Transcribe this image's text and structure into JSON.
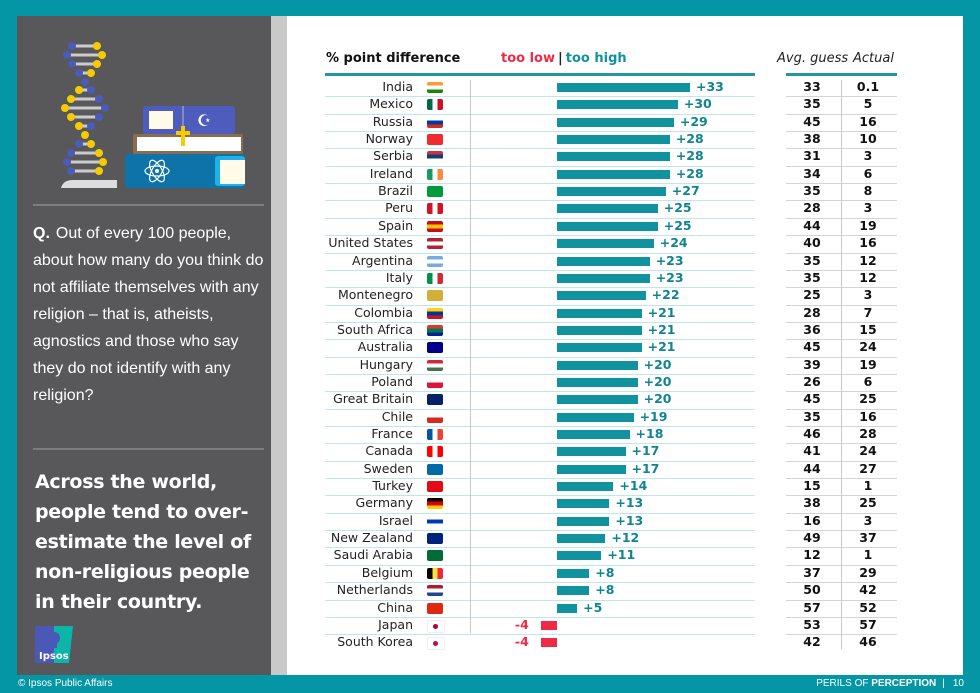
{
  "sidebar": {
    "question_prefix": "Q.",
    "question": "Out of every 100 people, about how many do you think do not affiliate themselves with any religion – that is, atheists, agnostics and those who say they do not identify with any religion?",
    "takeaway": "Across the world, people tend to over-estimate the level of non-religious people in their country.",
    "logo_text": "Ipsos"
  },
  "footer": {
    "copyright": "© Ipsos Public Affairs",
    "series_prefix": "PERILS OF",
    "series_bold": "PERCEPTION",
    "separator": "|",
    "page_number": "10"
  },
  "colors": {
    "too_low": "#ee2b45",
    "too_high": "#10939f",
    "frame": "#0596a6",
    "panel": "#58575a"
  },
  "chart_data": {
    "type": "bar",
    "orientation": "horizontal",
    "title": "% point difference",
    "legend": {
      "too_low": "too low",
      "separator": "|",
      "too_high": "too high",
      "placement": "top"
    },
    "table_headers": {
      "avg_guess": "Avg. guess",
      "actual": "Actual"
    },
    "categories": [
      "India",
      "Mexico",
      "Russia",
      "Norway",
      "Serbia",
      "Ireland",
      "Brazil",
      "Peru",
      "Spain",
      "United States",
      "Argentina",
      "Italy",
      "Montenegro",
      "Colombia",
      "South Africa",
      "Australia",
      "Hungary",
      "Poland",
      "Great Britain",
      "Chile",
      "France",
      "Canada",
      "Sweden",
      "Turkey",
      "Germany",
      "Israel",
      "New Zealand",
      "Saudi Arabia",
      "Belgium",
      "Netherlands",
      "China",
      "Japan",
      "South Korea"
    ],
    "values": [
      33,
      30,
      29,
      28,
      28,
      28,
      27,
      25,
      25,
      24,
      23,
      23,
      22,
      21,
      21,
      21,
      20,
      20,
      20,
      19,
      18,
      17,
      17,
      14,
      13,
      13,
      12,
      11,
      8,
      8,
      5,
      -4,
      -4
    ],
    "labels": [
      "+33",
      "+30",
      "+29",
      "+28",
      "+28",
      "+28",
      "+27",
      "+25",
      "+25",
      "+24",
      "+23",
      "+23",
      "+22",
      "+21",
      "+21",
      "+21",
      "+20",
      "+20",
      "+20",
      "+19",
      "+18",
      "+17",
      "+17",
      "+14",
      "+13",
      "+13",
      "+12",
      "+11",
      "+8",
      "+8",
      "+5",
      "-4",
      "-4"
    ],
    "avg_guess": [
      "33",
      "35",
      "45",
      "38",
      "31",
      "34",
      "35",
      "28",
      "44",
      "40",
      "35",
      "35",
      "25",
      "28",
      "36",
      "45",
      "39",
      "26",
      "45",
      "35",
      "46",
      "41",
      "44",
      "15",
      "38",
      "16",
      "49",
      "12",
      "37",
      "50",
      "57",
      "53",
      "42"
    ],
    "actual": [
      "0.1",
      "5",
      "16",
      "10",
      "3",
      "6",
      "8",
      "3",
      "19",
      "16",
      "12",
      "12",
      "3",
      "7",
      "15",
      "24",
      "19",
      "6",
      "25",
      "16",
      "28",
      "24",
      "27",
      "1",
      "25",
      "3",
      "37",
      "1",
      "29",
      "42",
      "52",
      "57",
      "46"
    ],
    "xlim": [
      -10,
      35
    ]
  }
}
